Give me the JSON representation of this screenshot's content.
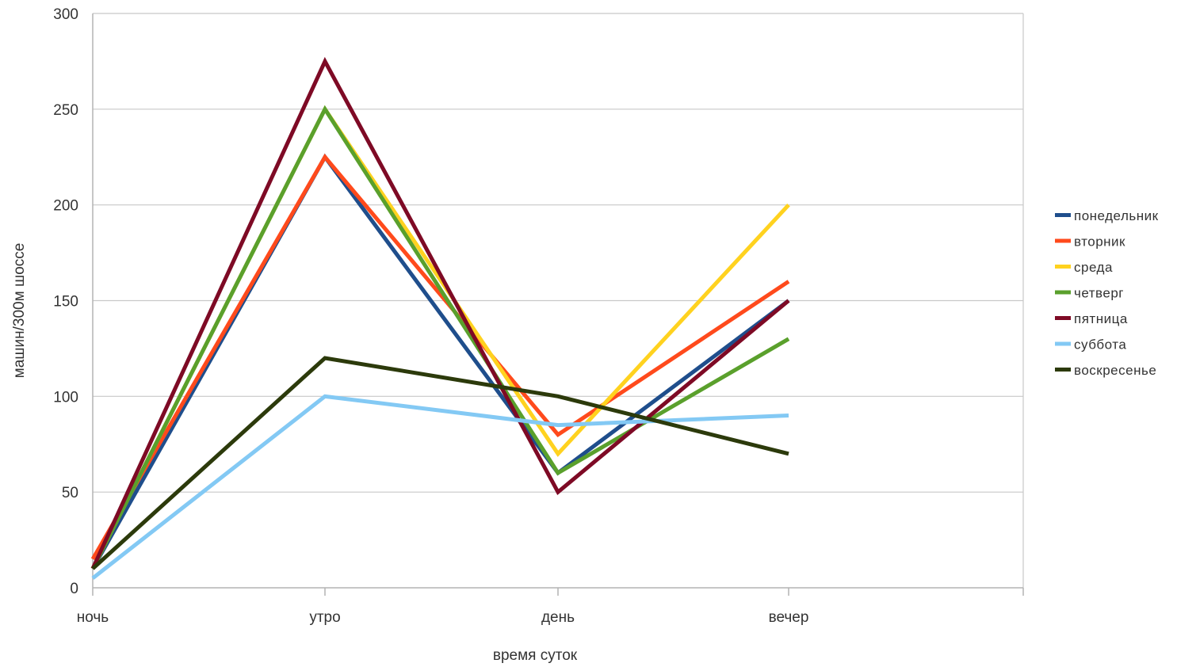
{
  "chart_data": {
    "type": "line",
    "categories": [
      "ночь",
      "утро",
      "день",
      "вечер"
    ],
    "xlabel": "время суток",
    "ylabel": "машин/300м шоссе",
    "ylim": [
      0,
      300
    ],
    "yticks": [
      0,
      50,
      100,
      150,
      200,
      250,
      300
    ],
    "grid": true,
    "legend_position": "right",
    "series": [
      {
        "name": "понедельник",
        "color": "#1f4e8c",
        "values": [
          10,
          225,
          60,
          150
        ]
      },
      {
        "name": "вторник",
        "color": "#ff4a1c",
        "values": [
          15,
          225,
          80,
          160
        ]
      },
      {
        "name": "среда",
        "color": "#ffd21f",
        "values": [
          10,
          250,
          70,
          200
        ]
      },
      {
        "name": "четверг",
        "color": "#5aa02c",
        "values": [
          10,
          250,
          60,
          130
        ]
      },
      {
        "name": "пятница",
        "color": "#7e0a25",
        "values": [
          10,
          275,
          50,
          150
        ]
      },
      {
        "name": "суббота",
        "color": "#83c9f4",
        "values": [
          5,
          100,
          85,
          90
        ]
      },
      {
        "name": "воскресенье",
        "color": "#2c3a0b",
        "values": [
          10,
          120,
          100,
          70
        ]
      }
    ]
  }
}
